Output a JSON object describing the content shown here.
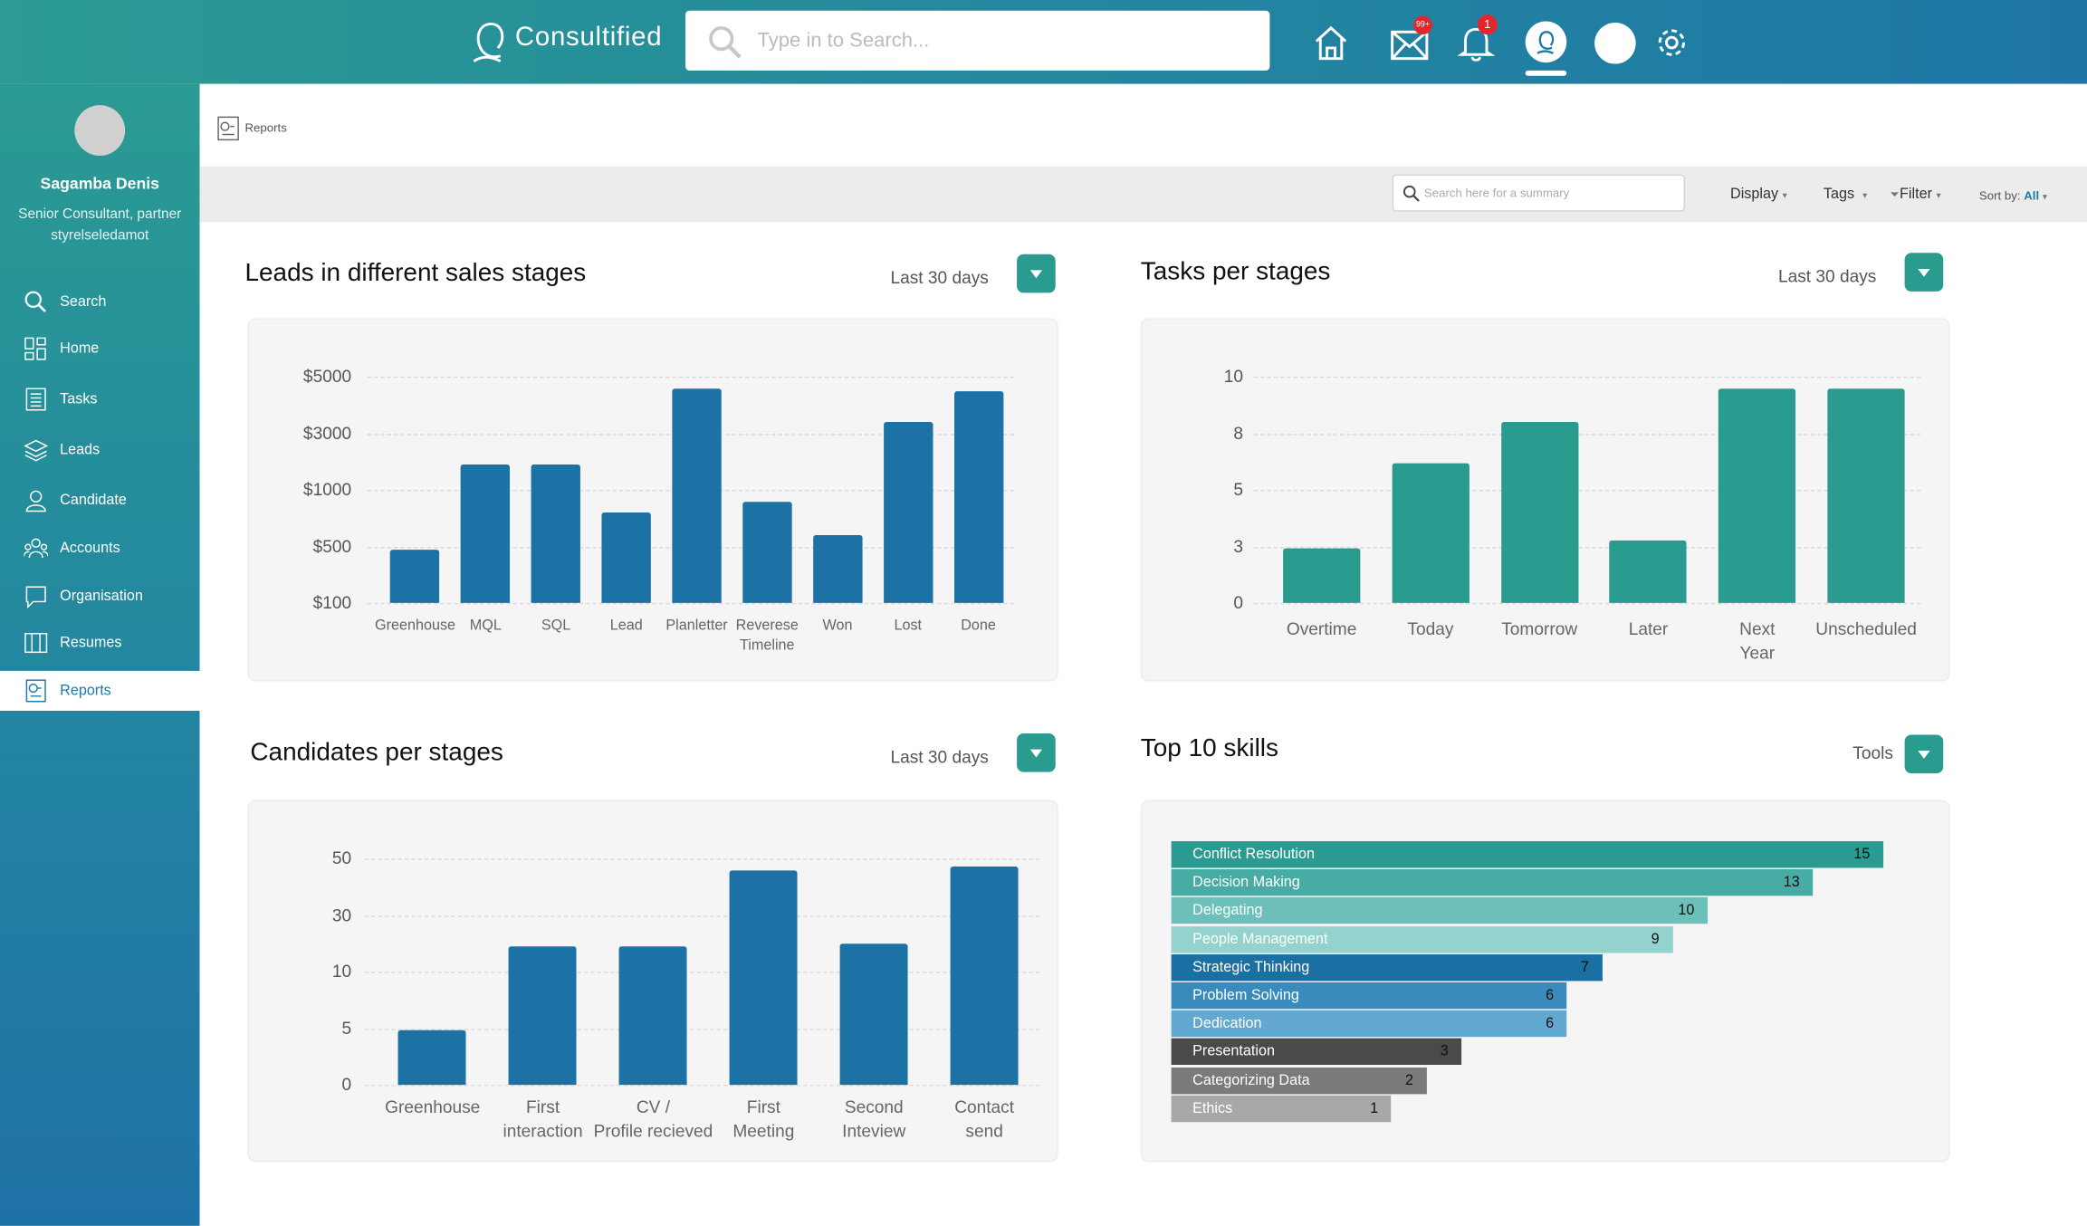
{
  "header": {
    "brand": "Consultified",
    "search_placeholder": "Type in to Search...",
    "mail_badge": "99+",
    "bell_badge": "1"
  },
  "sidebar": {
    "user_name": "Sagamba Denis",
    "user_role": "Senior Consultant, partner\nstyrelseledamot",
    "nav": [
      "Search",
      "Home",
      "Tasks",
      "Leads",
      "Candidate",
      "Accounts",
      "Organisation",
      "Resumes",
      "Reports"
    ]
  },
  "breadcrumb": "Reports",
  "toolbar": {
    "search_placeholder": "Search here for a summary",
    "display": "Display",
    "tags": "Tags",
    "filter": "Filter",
    "sort_label": "Sort by:",
    "sort_value": "All"
  },
  "chart_data": [
    {
      "type": "bar",
      "title": "Leads in different sales stages",
      "period": "Last 30 days",
      "categories": [
        "Greenhouse",
        "MQL",
        "SQL",
        "Lead",
        "Planletter",
        "Reverese\nTimeline",
        "Won",
        "Lost",
        "Done"
      ],
      "values": [
        480,
        1900,
        1900,
        800,
        4600,
        900,
        600,
        3400,
        4500
      ],
      "color": "#1d72a5",
      "ylim": [
        100,
        5000
      ],
      "yticks": [
        {
          "value": 100,
          "label": "$100"
        },
        {
          "value": 500,
          "label": "$500"
        },
        {
          "value": 1000,
          "label": "$1000"
        },
        {
          "value": 3000,
          "label": "$3000"
        },
        {
          "value": 5000,
          "label": "$5000"
        }
      ],
      "grid": true
    },
    {
      "type": "bar",
      "title": "Tasks per stages",
      "period": "Last 30 days",
      "categories": [
        "Overtime",
        "Today",
        "Tomorrow",
        "Later",
        "Next\nYear",
        "Unscheduled"
      ],
      "values": [
        2.9,
        6.4,
        8.4,
        3.2,
        9.6,
        9.6
      ],
      "color": "#2a9b8f",
      "ylim": [
        0,
        10
      ],
      "yticks": [
        0,
        3,
        5,
        8,
        10
      ],
      "grid": true
    },
    {
      "type": "bar",
      "title": "Candidates per stages",
      "period": "Last 30 days",
      "categories": [
        "Greenhouse",
        "First\ninteraction",
        "CV /\nProfile recieved",
        "First\nMeeting",
        "Second\nInteview",
        "Contact\nsend"
      ],
      "values": [
        4.8,
        19,
        19,
        46,
        20,
        47
      ],
      "color": "#1d72a5",
      "ylim": [
        0,
        50
      ],
      "yticks": [
        0,
        5,
        10,
        30,
        50
      ],
      "grid": true
    },
    {
      "type": "barh",
      "title": "Top 10 skills",
      "period": "Tools",
      "categories": [
        "Conflict Resolution",
        "Decision Making",
        "Delegating",
        "People Management",
        "Strategic Thinking",
        "Problem Solving",
        "Dedication",
        "Presentation",
        "Categorizing Data",
        "Ethics"
      ],
      "values": [
        15,
        13,
        10,
        9,
        7,
        6,
        6,
        3,
        2,
        1
      ],
      "colors": [
        "#2b9a91",
        "#46aca4",
        "#6cc0b9",
        "#94d2cd",
        "#1a6fa3",
        "#3a8bbd",
        "#62a8d0",
        "#4a4a4a",
        "#7a7a7a",
        "#a8a8a8"
      ]
    }
  ]
}
